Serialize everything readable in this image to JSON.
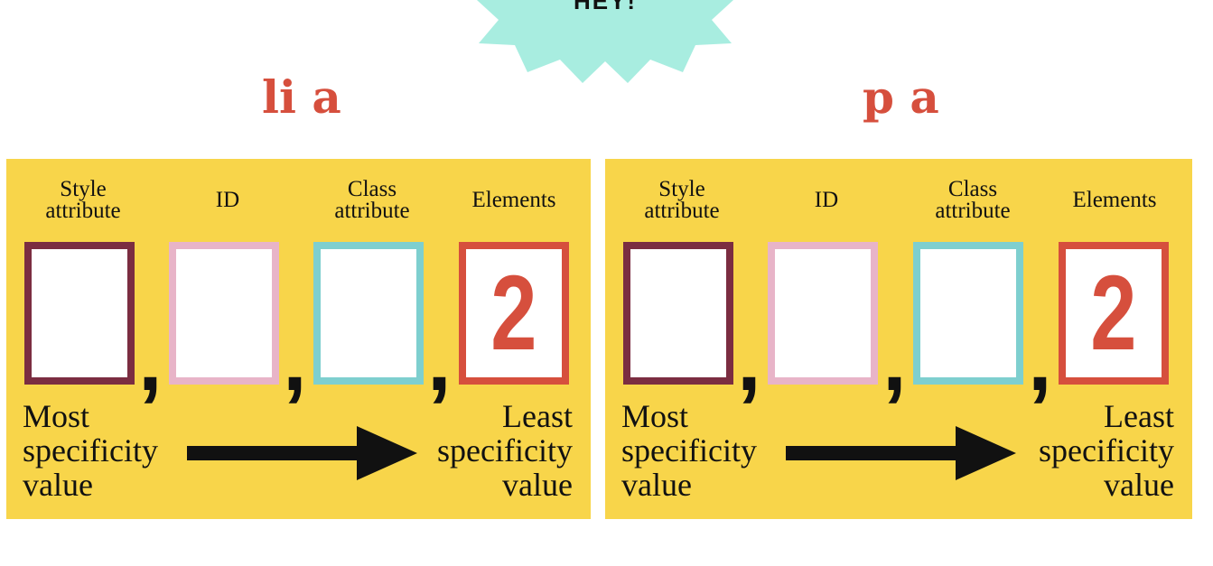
{
  "burst": {
    "text": "HEY!",
    "color": "#a8ede0"
  },
  "panels": [
    {
      "selector": "li a",
      "columns": [
        "Style attribute",
        "ID",
        "Class attribute",
        "Elements"
      ],
      "values": [
        "",
        "",
        "",
        "2"
      ],
      "separator": ",",
      "most_label": "Most specificity value",
      "least_label": "Least specificity value"
    },
    {
      "selector": "p a",
      "columns": [
        "Style attribute",
        "ID",
        "Class attribute",
        "Elements"
      ],
      "values": [
        "",
        "",
        "",
        "2"
      ],
      "separator": ",",
      "most_label": "Most specificity value",
      "least_label": "Least specificity value"
    }
  ],
  "colors": {
    "panel": "#f8d54a",
    "accent": "#d64f3d",
    "style_box": "#7b2d41",
    "id_box": "#e8b4c8",
    "class_box": "#7ecfcf",
    "elements_box": "#d64f3d"
  }
}
